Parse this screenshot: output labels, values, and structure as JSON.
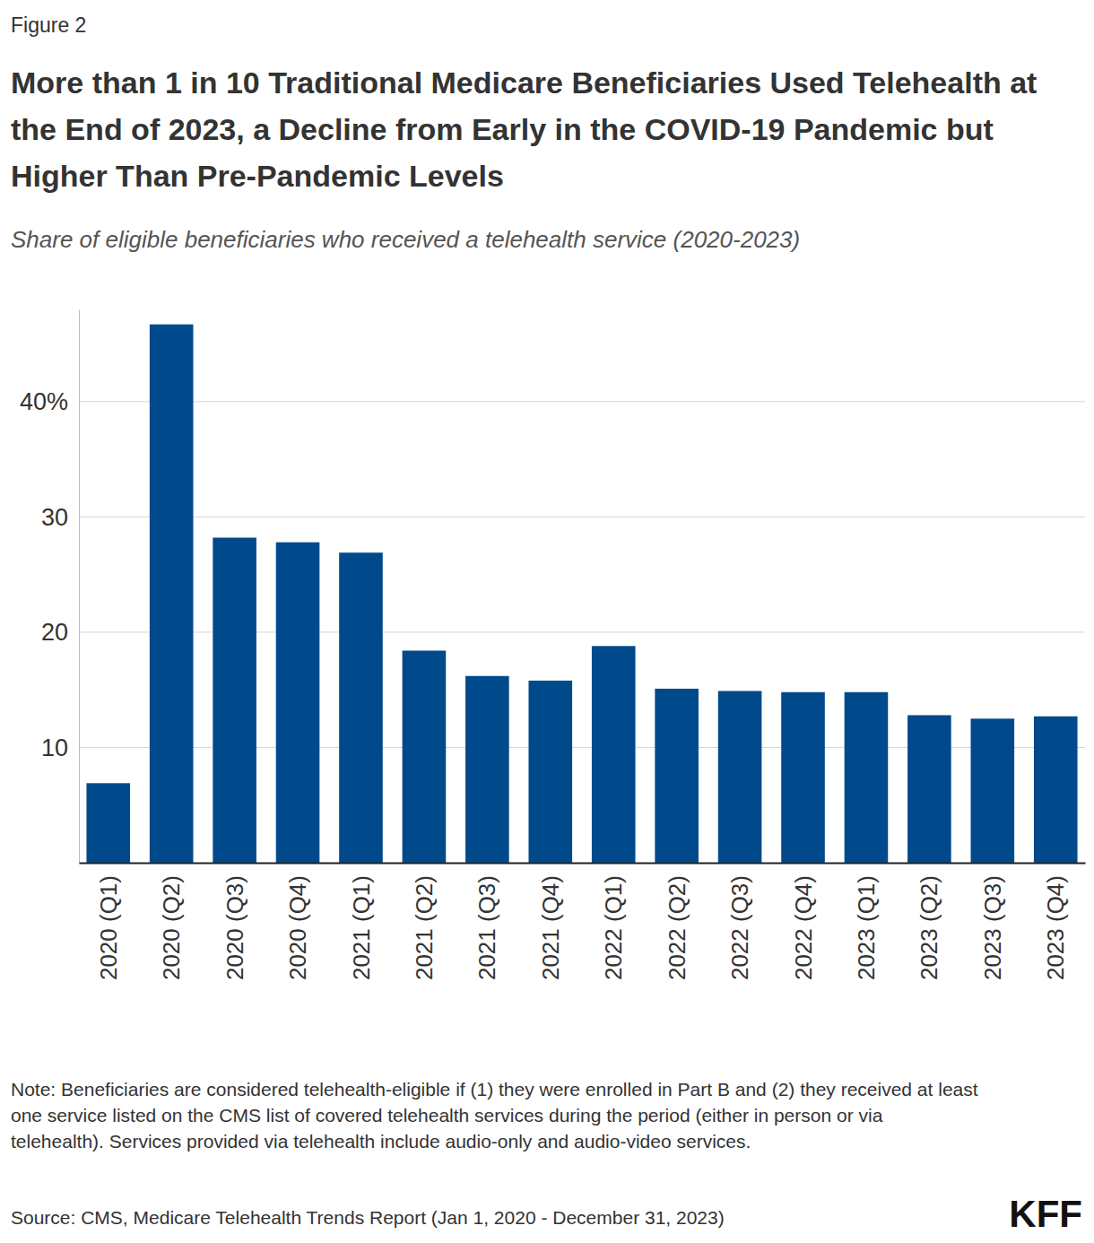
{
  "chart_data": {
    "type": "bar",
    "title": "More than 1 in 10 Traditional Medicare Beneficiaries Used Telehealth at the End of 2023, a Decline from Early in the COVID-19 Pandemic but Higher Than Pre-Pandemic Levels",
    "subtitle": "Share of eligible beneficiaries who received a telehealth service (2020-2023)",
    "annotations": [
      "Figure 2",
      "Note: Beneficiaries are considered telehealth-eligible if (1) they were enrolled in Part B and (2) they received at least one service listed on the CMS list of covered telehealth services during the period (either in person or via telehealth). Services provided via telehealth include audio-only and audio-video services.",
      "Source: CMS, Medicare Telehealth Trends Report (Jan 1, 2020 - December 31, 2023)",
      "KFF"
    ],
    "categories": [
      "2020 (Q1)",
      "2020 (Q2)",
      "2020 (Q3)",
      "2020 (Q4)",
      "2021 (Q1)",
      "2021 (Q2)",
      "2021 (Q3)",
      "2021 (Q4)",
      "2022 (Q1)",
      "2022 (Q2)",
      "2022 (Q3)",
      "2022 (Q4)",
      "2023 (Q1)",
      "2023 (Q2)",
      "2023 (Q3)",
      "2023 (Q4)"
    ],
    "values": [
      6.9,
      46.7,
      28.2,
      27.8,
      26.9,
      18.4,
      16.2,
      15.8,
      18.8,
      15.1,
      14.9,
      14.8,
      14.8,
      12.8,
      12.5,
      12.7
    ],
    "color": "#004a8c",
    "ylim": [
      0,
      48
    ],
    "yticks": [
      10,
      20,
      30,
      {
        "value": 40,
        "label": "40%"
      }
    ],
    "grid": true
  }
}
